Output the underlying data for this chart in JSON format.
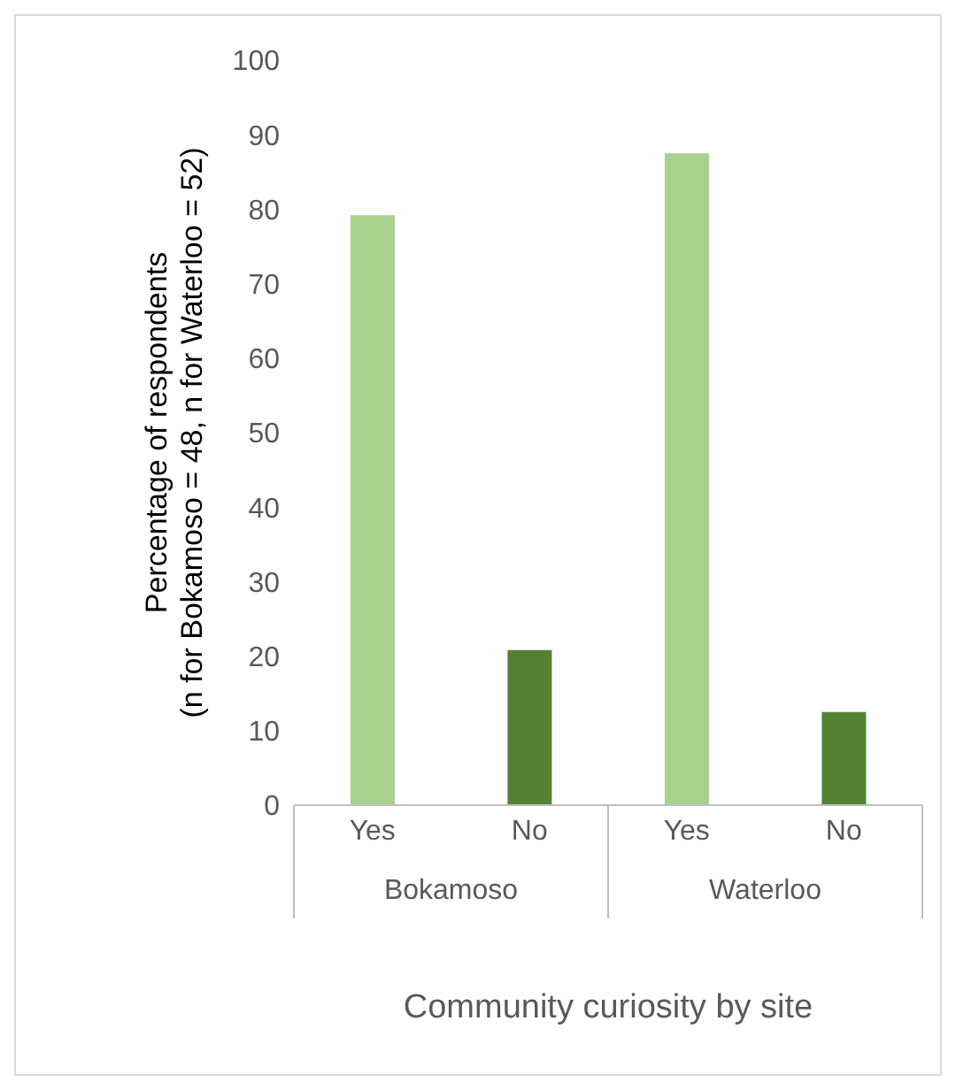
{
  "chart_data": {
    "type": "bar",
    "xlabel": "Community curiosity by site",
    "ylabel": "Percentage of respondents\n(n for Bokamoso = 48, n for Waterloo = 52)",
    "categories": [
      "Yes",
      "No",
      "Yes",
      "No"
    ],
    "values": [
      79.2,
      20.8,
      87.5,
      12.5
    ],
    "colors": [
      "#a9d18e",
      "#548235",
      "#a9d18e",
      "#548235"
    ],
    "annotations": [
      "Bokamoso",
      "Waterloo"
    ],
    "ylim": [
      0,
      100
    ],
    "yticks": [
      0,
      10,
      20,
      30,
      40,
      50,
      60,
      70,
      80,
      90,
      100
    ],
    "grid": false
  }
}
